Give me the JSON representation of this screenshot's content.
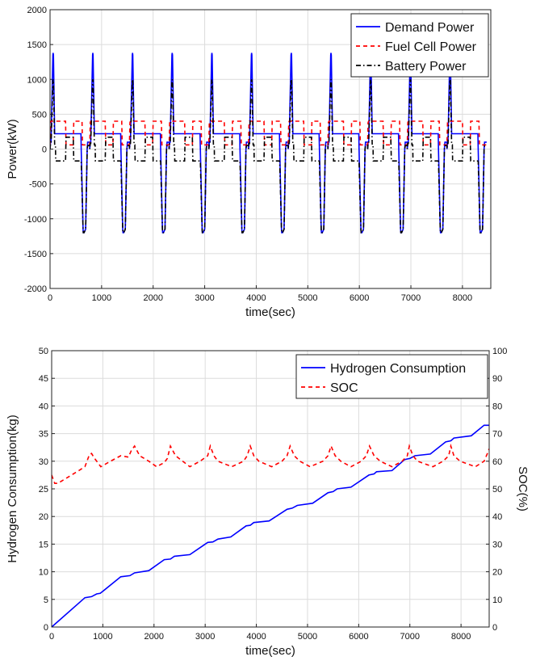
{
  "chart_data": [
    {
      "type": "line",
      "xlabel": "time(sec)",
      "ylabel": "Power(kW)",
      "xlim": [
        0,
        8550
      ],
      "ylim": [
        -2000,
        2000
      ],
      "xticks": [
        0,
        1000,
        2000,
        3000,
        4000,
        5000,
        6000,
        7000,
        8000
      ],
      "yticks": [
        -2000,
        -1500,
        -1000,
        -500,
        0,
        500,
        1000,
        1500,
        2000
      ],
      "grid": true,
      "legend_position": "top-right",
      "cycle_period_sec": 770,
      "cycle_count": 11,
      "series": [
        {
          "name": "Demand Power",
          "color": "#0000ff",
          "style": "solid",
          "cycle": {
            "t": [
              0,
              10,
              20,
              55,
              60,
              65,
              90,
              95,
              105,
              110,
              115,
              600,
              605,
              640,
              645,
              660,
              690,
              720,
              730,
              740,
              745,
              770
            ],
            "y": [
              0,
              100,
              100,
              1350,
              1380,
              1350,
              220,
              220,
              220,
              220,
              220,
              220,
              0,
              -1150,
              -1200,
              -1200,
              -1150,
              0,
              100,
              100,
              100,
              100
            ]
          }
        },
        {
          "name": "Fuel Cell Power",
          "color": "#ff0000",
          "style": "dashed",
          "cycle": {
            "t": [
              0,
              10,
              20,
              300,
              310,
              450,
              460,
              620,
              630,
              770
            ],
            "y": [
              60,
              380,
              400,
              400,
              60,
              60,
              400,
              400,
              60,
              60
            ]
          }
        },
        {
          "name": "Battery Power",
          "color": "#000000",
          "style": "dashdot",
          "cycle": {
            "t": [
              0,
              10,
              20,
              55,
              60,
              65,
              90,
              95,
              105,
              110,
              300,
              310,
              450,
              460,
              600,
              605,
              640,
              645,
              660,
              690,
              720,
              730,
              740,
              770
            ],
            "y": [
              0,
              80,
              80,
              980,
              1000,
              980,
              60,
              60,
              60,
              -170,
              -170,
              170,
              170,
              -170,
              -170,
              -180,
              -1150,
              -1200,
              -1200,
              -1150,
              0,
              50,
              50,
              50
            ]
          }
        }
      ]
    },
    {
      "type": "line",
      "xlabel": "time(sec)",
      "ylabel": "Hydrogen Consumption(kg)",
      "ylabel_right": "SOC(%)",
      "xlim": [
        0,
        8550
      ],
      "ylim": [
        0,
        50
      ],
      "ylim_right": [
        0,
        100
      ],
      "xticks": [
        0,
        1000,
        2000,
        3000,
        4000,
        5000,
        6000,
        7000,
        8000
      ],
      "yticks": [
        0,
        5,
        10,
        15,
        20,
        25,
        30,
        35,
        40,
        45,
        50
      ],
      "yticks_right": [
        0,
        10,
        20,
        30,
        40,
        50,
        60,
        70,
        80,
        90,
        100
      ],
      "grid": true,
      "legend_position": "top-right",
      "series": [
        {
          "name": "Hydrogen Consumption",
          "color": "#0000ff",
          "style": "solid",
          "axis": "left",
          "x": [
            0,
            650,
            780,
            880,
            950,
            1350,
            1530,
            1620,
            1900,
            2200,
            2320,
            2400,
            2700,
            3050,
            3150,
            3250,
            3500,
            3800,
            3880,
            3950,
            4250,
            4600,
            4700,
            4800,
            5100,
            5400,
            5500,
            5580,
            5850,
            6200,
            6300,
            6350,
            6650,
            6900,
            7000,
            7100,
            7400,
            7700,
            7800,
            7860,
            8200,
            8450,
            8550
          ],
          "y": [
            0,
            5.3,
            5.5,
            6.0,
            6.1,
            9.1,
            9.3,
            9.8,
            10.2,
            12.2,
            12.3,
            12.8,
            13.1,
            15.3,
            15.4,
            15.9,
            16.3,
            18.3,
            18.4,
            18.9,
            19.2,
            21.3,
            21.5,
            22.0,
            22.4,
            24.3,
            24.5,
            25.0,
            25.3,
            27.5,
            27.7,
            28.1,
            28.3,
            30.3,
            30.5,
            31.0,
            31.3,
            33.5,
            33.7,
            34.2,
            34.6,
            36.5,
            36.5
          ]
        },
        {
          "name": "SOC",
          "color": "#ff0000",
          "style": "dashed",
          "axis": "right",
          "x": [
            0,
            60,
            120,
            300,
            520,
            650,
            740,
            780,
            840,
            960,
            1150,
            1350,
            1500,
            1560,
            1620,
            1720,
            1900,
            2050,
            2200,
            2260,
            2320,
            2420,
            2700,
            2900,
            3050,
            3100,
            3170,
            3250,
            3520,
            3750,
            3820,
            3880,
            3950,
            4050,
            4300,
            4500,
            4600,
            4660,
            4740,
            4850,
            5050,
            5300,
            5400,
            5460,
            5540,
            5650,
            5850,
            6050,
            6150,
            6210,
            6300,
            6420,
            6650,
            6850,
            6950,
            6990,
            7060,
            7150,
            7450,
            7650,
            7760,
            7800,
            7860,
            7980,
            8280,
            8450,
            8520,
            8550
          ],
          "y": [
            55,
            52,
            52,
            54,
            56.5,
            58,
            62.5,
            62.8,
            61,
            58,
            60,
            62,
            61.5,
            64,
            65.5,
            62,
            60,
            58,
            59.5,
            61,
            65.5,
            62,
            58,
            60,
            62,
            65.5,
            62,
            60,
            58,
            60,
            62,
            65.5,
            62,
            60,
            58,
            60,
            62,
            65.5,
            62,
            60,
            58,
            60,
            62,
            65.5,
            62,
            60,
            58,
            60,
            62,
            65.5,
            62,
            60,
            58,
            60,
            62,
            65.5,
            62,
            60,
            58,
            60,
            62,
            65.5,
            62,
            60,
            58,
            60,
            63,
            64.5
          ]
        }
      ]
    }
  ]
}
